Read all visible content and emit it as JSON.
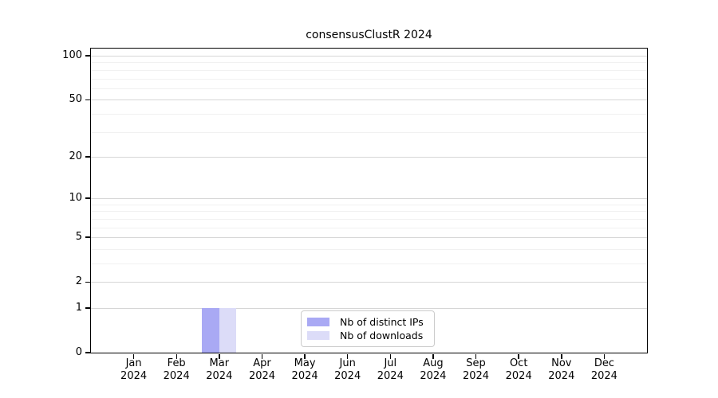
{
  "chart_data": {
    "type": "bar",
    "title": "consensusClustR 2024",
    "x": {
      "categories": [
        "Jan",
        "Feb",
        "Mar",
        "Apr",
        "May",
        "Jun",
        "Jul",
        "Aug",
        "Sep",
        "Oct",
        "Nov",
        "Dec"
      ],
      "year_label": "2024"
    },
    "series": [
      {
        "name": "Nb of distinct IPs",
        "color": "#a9a9f4",
        "values": [
          0,
          0,
          1,
          0,
          0,
          0,
          0,
          0,
          0,
          0,
          0,
          0
        ]
      },
      {
        "name": "Nb of downloads",
        "color": "#dcdcf8",
        "values": [
          0,
          0,
          1,
          0,
          0,
          0,
          0,
          0,
          0,
          0,
          0,
          0
        ]
      }
    ],
    "yscale": "log1p",
    "ylim": [
      0,
      100
    ],
    "yticks": [
      0,
      1,
      2,
      5,
      10,
      20,
      50,
      100
    ],
    "grid": {
      "show": true,
      "orientation": "horizontal",
      "minor_values": [
        3,
        4,
        6,
        7,
        8,
        9,
        30,
        40,
        60,
        70,
        80,
        90
      ]
    },
    "legend_position": "bottom-center"
  },
  "colors": {
    "axis_line": "#000000",
    "tick_text": "#000000",
    "grid_major": "#d6d6d6",
    "grid_minor": "#f1f1f1",
    "legend_border": "#cccccc",
    "legend_background": "#ffffff",
    "background": "#ffffff"
  }
}
